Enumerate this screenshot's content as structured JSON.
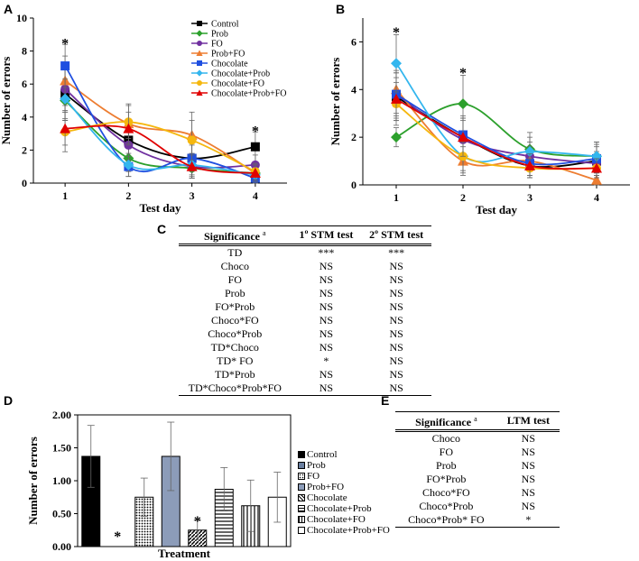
{
  "panels": {
    "a": "A",
    "b": "B",
    "c": "C",
    "d": "D",
    "e": "E"
  },
  "chart_data": [
    {
      "id": "A",
      "type": "line",
      "xlabel": "Test day",
      "ylabel": "Number of errors",
      "x": [
        1,
        2,
        3,
        4
      ],
      "xlim": [
        0.5,
        4.5
      ],
      "ylim": [
        0,
        10
      ],
      "yticks": [
        0,
        2,
        4,
        6,
        8,
        10
      ],
      "legend_position": "top-right",
      "series": [
        {
          "name": "Control",
          "color": "#000000",
          "marker": "square",
          "values": [
            5.4,
            2.6,
            1.5,
            2.2
          ],
          "err": [
            1.6,
            1.0,
            0.8,
            0.9
          ]
        },
        {
          "name": "Prob",
          "color": "#2ca02c",
          "marker": "diamond",
          "values": [
            5.0,
            1.5,
            0.9,
            0.6
          ],
          "err": [
            1.2,
            0.8,
            0.6,
            0.5
          ]
        },
        {
          "name": "FO",
          "color": "#7030a0",
          "marker": "circle",
          "values": [
            5.7,
            2.3,
            1.0,
            1.1
          ],
          "err": [
            1.3,
            0.9,
            0.7,
            0.6
          ]
        },
        {
          "name": "Prob+FO",
          "color": "#ed7d31",
          "marker": "triangle",
          "values": [
            6.2,
            3.6,
            2.9,
            0.6
          ],
          "err": [
            1.5,
            1.2,
            1.4,
            0.5
          ]
        },
        {
          "name": "Chocolate",
          "color": "#1f4fe0",
          "marker": "square",
          "values": [
            7.1,
            1.0,
            1.5,
            0.3
          ],
          "err": [
            1.3,
            0.6,
            1.0,
            0.3
          ]
        },
        {
          "name": "Chocolate+Prob",
          "color": "#33b6ee",
          "marker": "diamond",
          "values": [
            5.1,
            1.1,
            1.1,
            0.5
          ],
          "err": [
            1.2,
            0.7,
            0.7,
            0.4
          ]
        },
        {
          "name": "Chocolate+FO",
          "color": "#f5b70e",
          "marker": "circle",
          "values": [
            3.1,
            3.7,
            2.6,
            0.7
          ],
          "err": [
            1.2,
            1.0,
            1.2,
            0.5
          ]
        },
        {
          "name": "Chocolate+Prob+FO",
          "color": "#e00000",
          "marker": "triangle",
          "values": [
            3.3,
            3.3,
            1.0,
            0.6
          ],
          "err": [
            1.0,
            1.0,
            0.7,
            0.5
          ]
        }
      ],
      "annotations": [
        {
          "x": 1,
          "y": 8.6,
          "text": "*"
        },
        {
          "x": 4,
          "y": 3.3,
          "text": "*"
        }
      ]
    },
    {
      "id": "B",
      "type": "line",
      "xlabel": "Test day",
      "ylabel": "Number of errors",
      "x": [
        1,
        2,
        3,
        4
      ],
      "xlim": [
        0.5,
        4.5
      ],
      "ylim": [
        0,
        7
      ],
      "yticks": [
        0,
        2,
        4,
        6
      ],
      "series": [
        {
          "name": "Control",
          "color": "#000000",
          "marker": "square",
          "values": [
            3.7,
            2.0,
            0.8,
            1.0
          ],
          "err": [
            1.0,
            0.8,
            0.5,
            0.6
          ]
        },
        {
          "name": "Prob",
          "color": "#2ca02c",
          "marker": "diamond",
          "values": [
            2.0,
            3.4,
            1.5,
            1.2
          ],
          "err": [
            0.4,
            1.2,
            0.7,
            0.6
          ]
        },
        {
          "name": "FO",
          "color": "#7030a0",
          "marker": "circle",
          "values": [
            3.8,
            1.9,
            1.2,
            0.9
          ],
          "err": [
            0.9,
            0.8,
            0.6,
            0.5
          ]
        },
        {
          "name": "Prob+FO",
          "color": "#ed7d31",
          "marker": "triangle",
          "values": [
            4.0,
            1.0,
            1.0,
            0.2
          ],
          "err": [
            1.0,
            0.6,
            0.6,
            0.3
          ]
        },
        {
          "name": "Chocolate",
          "color": "#1f4fe0",
          "marker": "square",
          "values": [
            3.8,
            2.1,
            0.9,
            1.1
          ],
          "err": [
            1.0,
            0.8,
            0.5,
            0.6
          ]
        },
        {
          "name": "Chocolate+Prob",
          "color": "#33b6ee",
          "marker": "diamond",
          "values": [
            5.1,
            1.2,
            1.4,
            1.2
          ],
          "err": [
            1.2,
            0.7,
            0.6,
            0.6
          ]
        },
        {
          "name": "Chocolate+FO",
          "color": "#f5b70e",
          "marker": "circle",
          "values": [
            3.4,
            1.2,
            0.7,
            0.7
          ],
          "err": [
            0.9,
            0.6,
            0.4,
            0.4
          ]
        },
        {
          "name": "Chocolate+Prob+FO",
          "color": "#e00000",
          "marker": "triangle",
          "values": [
            3.6,
            2.0,
            0.8,
            0.7
          ],
          "err": [
            0.9,
            0.8,
            0.5,
            0.4
          ]
        }
      ],
      "annotations": [
        {
          "x": 1,
          "y": 6.5,
          "text": "*"
        },
        {
          "x": 2,
          "y": 4.8,
          "text": "*"
        }
      ]
    },
    {
      "id": "D",
      "type": "bar",
      "xlabel": "Treatment",
      "ylabel": "Number of errors",
      "ylim": [
        0,
        2
      ],
      "yticks": [
        "0.00",
        "0.50",
        "1.00",
        "1.50",
        "2.00"
      ],
      "categories": [
        "Control",
        "Prob",
        "FO",
        "Prob+FO",
        "Chocolate",
        "Chocolate+Prob",
        "Chocolate+FO",
        "Chocolate+Prob+FO"
      ],
      "values": [
        1.37,
        0,
        0.75,
        1.37,
        0.25,
        0.87,
        0.62,
        0.75
      ],
      "err": [
        0.47,
        0,
        0.29,
        0.52,
        0.15,
        0.33,
        0.39,
        0.38
      ],
      "fills": [
        "solid-black",
        "solid-blue",
        "dots",
        "solid-steel",
        "diagonal",
        "horizontal",
        "vertical",
        "white"
      ],
      "annotations": [
        {
          "category": "Prob",
          "text": "*"
        },
        {
          "category": "Chocolate",
          "text": "*"
        }
      ],
      "legend_position": "right"
    }
  ],
  "table_c": {
    "headers": [
      "Significance",
      "1º STM test",
      "2º STM test"
    ],
    "sup": "a",
    "rows": [
      [
        "TD",
        "***",
        "***"
      ],
      [
        "Choco",
        "NS",
        "NS"
      ],
      [
        "FO",
        "NS",
        "NS"
      ],
      [
        "Prob",
        "NS",
        "NS"
      ],
      [
        "FO*Prob",
        "NS",
        "NS"
      ],
      [
        "Choco*FO",
        "NS",
        "NS"
      ],
      [
        "Choco*Prob",
        "NS",
        "NS"
      ],
      [
        "TD*Choco",
        "NS",
        "NS"
      ],
      [
        "TD* FO",
        "*",
        "NS"
      ],
      [
        "TD*Prob",
        "NS",
        "NS"
      ],
      [
        "TD*Choco*Prob*FO",
        "NS",
        "NS"
      ]
    ]
  },
  "table_e": {
    "headers": [
      "Significance",
      "LTM test"
    ],
    "sup": "a",
    "rows": [
      [
        "Choco",
        "NS"
      ],
      [
        "FO",
        "NS"
      ],
      [
        "Prob",
        "NS"
      ],
      [
        "FO*Prob",
        "NS"
      ],
      [
        "Choco*FO",
        "NS"
      ],
      [
        "Choco*Prob",
        "NS"
      ],
      [
        "Choco*Prob* FO",
        "*"
      ]
    ]
  }
}
